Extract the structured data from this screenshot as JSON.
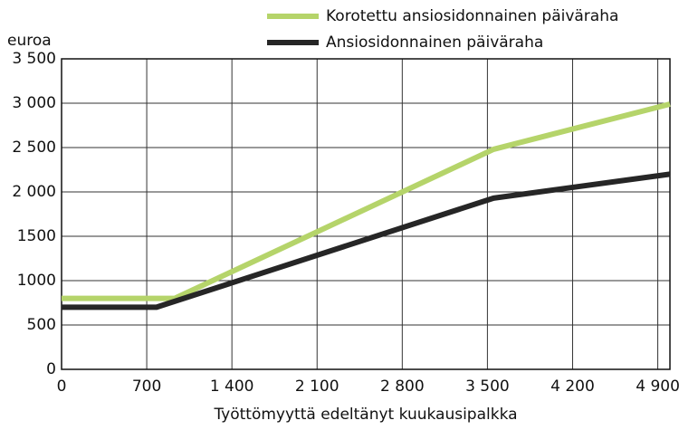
{
  "chart_data": {
    "type": "line",
    "y_label": "euroa",
    "x_label": "Työttömyyttä edeltänyt kuukausipalkka",
    "xlim": [
      0,
      5000
    ],
    "ylim": [
      0,
      3500
    ],
    "xticks": [
      0,
      700,
      {
        "value": 1400,
        "label": "1 400"
      },
      {
        "value": 2100,
        "label": "2 100"
      },
      {
        "value": 2800,
        "label": "2 800"
      },
      {
        "value": 3500,
        "label": "3 500"
      },
      {
        "value": 4200,
        "label": "4 200"
      },
      {
        "value": 4900,
        "label": "4 900"
      }
    ],
    "yticks": [
      0,
      500,
      1000,
      1500,
      {
        "value": 2000,
        "label": "2 000"
      },
      {
        "value": 2500,
        "label": "2 500"
      },
      {
        "value": 3000,
        "label": "3 000"
      },
      {
        "value": 3500,
        "label": "3 500"
      }
    ],
    "grid": true,
    "legend": "top-right",
    "series": [
      {
        "name": "Korotettu ansiosidonnainen päiväraha",
        "color": "#b5d46a",
        "x": [
          0,
          930,
          3550,
          5000
        ],
        "values": [
          800,
          800,
          2480,
          2990
        ]
      },
      {
        "name": "Ansiosidonnainen päiväraha",
        "color": "#262626",
        "x": [
          0,
          780,
          3550,
          5000
        ],
        "values": [
          700,
          700,
          1930,
          2200
        ]
      }
    ]
  }
}
